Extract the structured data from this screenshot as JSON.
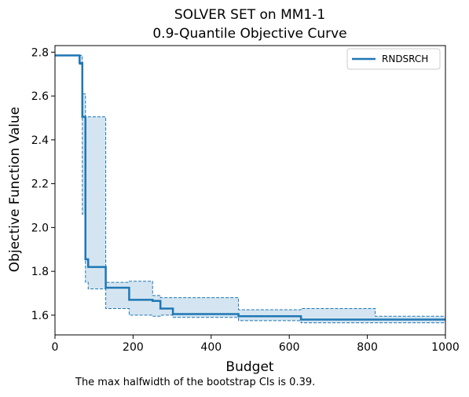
{
  "chart_data": {
    "type": "line",
    "title": "SOLVER SET on MM1-1",
    "subtitle": "0.9-Quantile Objective Curve",
    "xlabel": "Budget",
    "ylabel": "Objective Function Value",
    "xlim": [
      0,
      1000
    ],
    "ylim": [
      1.51,
      2.83
    ],
    "xticks": [
      0,
      200,
      400,
      600,
      800,
      1000
    ],
    "yticks": [
      1.6,
      1.8,
      2.0,
      2.2,
      2.4,
      2.6,
      2.8
    ],
    "legend_position": "top-right",
    "grid": false,
    "colors": {
      "series": "#1f77b4",
      "band": "#cfe2f0"
    },
    "series": [
      {
        "name": "RNDSRCH",
        "step_x": [
          0,
          63,
          70,
          78,
          85,
          130,
          190,
          250,
          270,
          302,
          470,
          630,
          820,
          1000
        ],
        "y": [
          2.785,
          2.75,
          2.505,
          1.855,
          1.82,
          1.725,
          1.67,
          1.665,
          1.63,
          1.605,
          1.595,
          1.58,
          1.58,
          1.58
        ],
        "ci_upper": [
          2.785,
          2.785,
          2.61,
          2.505,
          2.505,
          1.75,
          1.755,
          1.69,
          1.68,
          1.68,
          1.625,
          1.63,
          1.595,
          1.595
        ],
        "ci_lower": [
          2.785,
          2.745,
          2.06,
          1.75,
          1.72,
          1.63,
          1.6,
          1.595,
          1.6,
          1.59,
          1.575,
          1.565,
          1.565,
          1.565
        ]
      }
    ],
    "footnote": "The max halfwidth of the bootstrap CIs is 0.39."
  }
}
